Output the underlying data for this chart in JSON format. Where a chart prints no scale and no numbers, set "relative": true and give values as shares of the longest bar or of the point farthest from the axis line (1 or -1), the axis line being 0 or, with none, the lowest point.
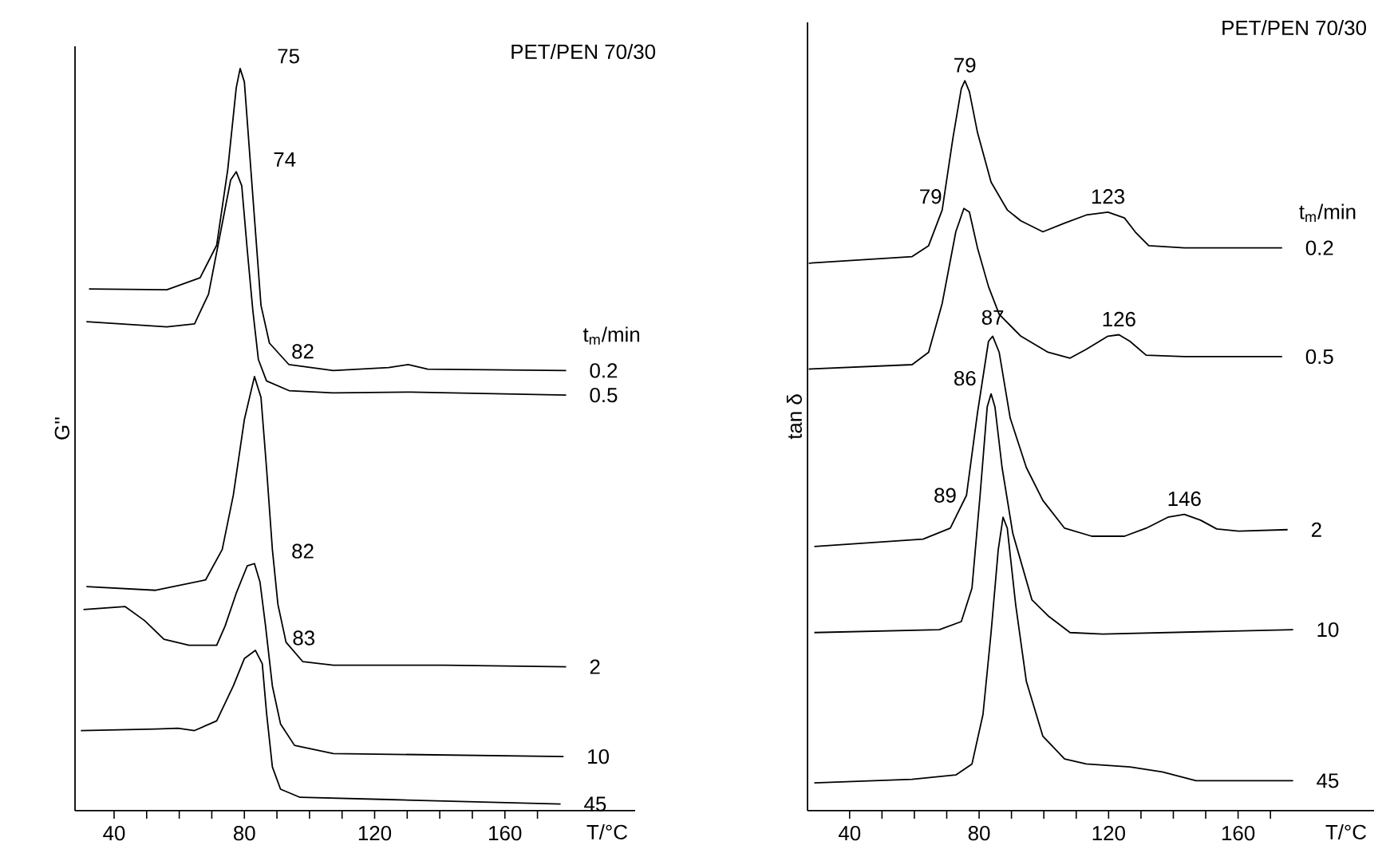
{
  "chart_data": [
    {
      "type": "line",
      "title": "PET/PEN 70/30",
      "xlabel": "T/°C",
      "ylabel": "G''",
      "legend_title": "t$_{m}$/min",
      "relative": true,
      "xlim": [
        28,
        200
      ],
      "xticks": [
        40,
        {
          "value": 50,
          "label": null
        },
        {
          "value": 60,
          "label": null
        },
        {
          "value": 70,
          "label": null
        },
        80,
        {
          "value": 90,
          "label": null
        },
        {
          "value": 100,
          "label": null
        },
        {
          "value": 110,
          "label": null
        },
        120,
        {
          "value": 130,
          "label": null
        },
        {
          "value": 140,
          "label": null
        },
        {
          "value": 150,
          "label": null
        },
        160,
        {
          "value": 170,
          "label": null
        }
      ],
      "series": [
        {
          "name": "0.2",
          "color": "#000000",
          "x": [
            32.3,
            56.2,
            66.4,
            71.5,
            74.9,
            77.5,
            78.7,
            80.0,
            82.6,
            85.1,
            87.7,
            93.7,
            107.3,
            124.3,
            130.3,
            136.3,
            178.8
          ],
          "values": [
            0.703,
            0.702,
            0.718,
            0.762,
            0.864,
            0.974,
            1.0,
            0.982,
            0.828,
            0.681,
            0.63,
            0.601,
            0.593,
            0.597,
            0.601,
            0.595,
            0.593
          ]
        },
        {
          "name": "0.5",
          "color": "#000000",
          "x": [
            31.5,
            56.2,
            64.7,
            69.0,
            73.2,
            75.8,
            77.5,
            79.2,
            80.9,
            82.6,
            84.3,
            86.8,
            93.7,
            107.3,
            131.1,
            178.8
          ],
          "values": [
            0.659,
            0.652,
            0.656,
            0.696,
            0.791,
            0.85,
            0.861,
            0.842,
            0.755,
            0.674,
            0.608,
            0.579,
            0.566,
            0.563,
            0.564,
            0.56
          ]
        },
        {
          "name": "2",
          "color": "#000000",
          "x": [
            31.5,
            52.8,
            68.1,
            73.2,
            76.6,
            80.0,
            83.1,
            85.1,
            86.8,
            88.6,
            90.3,
            92.8,
            97.9,
            107.3,
            141.4,
            178.8
          ],
          "values": [
            0.302,
            0.297,
            0.311,
            0.352,
            0.425,
            0.527,
            0.585,
            0.557,
            0.462,
            0.352,
            0.278,
            0.227,
            0.201,
            0.196,
            0.196,
            0.194
          ]
        },
        {
          "name": "10",
          "color": "#000000",
          "x": [
            30.6,
            43.4,
            49.4,
            55.3,
            63.0,
            71.5,
            74.1,
            77.5,
            80.9,
            83.1,
            84.8,
            86.5,
            88.6,
            91.1,
            95.4,
            107.3,
            178.0
          ],
          "values": [
            0.271,
            0.275,
            0.256,
            0.231,
            0.223,
            0.223,
            0.249,
            0.293,
            0.33,
            0.333,
            0.308,
            0.249,
            0.168,
            0.117,
            0.088,
            0.077,
            0.073
          ]
        },
        {
          "name": "45",
          "color": "#000000",
          "x": [
            29.8,
            52.8,
            59.6,
            64.7,
            71.5,
            76.6,
            80.0,
            83.4,
            85.5,
            86.8,
            88.6,
            91.1,
            97.1,
            124.3,
            177.1
          ],
          "values": [
            0.108,
            0.11,
            0.111,
            0.108,
            0.121,
            0.168,
            0.205,
            0.216,
            0.198,
            0.132,
            0.059,
            0.029,
            0.018,
            0.015,
            0.009
          ]
        }
      ],
      "annotations": [
        {
          "text": "75",
          "x": 78.7,
          "y": 1.0
        },
        {
          "text": "74",
          "x": 77.5,
          "y": 0.861
        },
        {
          "text": "82",
          "x": 83.1,
          "y": 0.585
        },
        {
          "text": "82",
          "x": 83.1,
          "y": 0.333
        },
        {
          "text": "83",
          "x": 83.4,
          "y": 0.216
        }
      ]
    },
    {
      "type": "line",
      "title": "PET/PEN 70/30",
      "xlabel": "T/°C",
      "ylabel": "tan δ",
      "legend_title": "t$_{m}$/min",
      "relative": true,
      "xlim": [
        27,
        202
      ],
      "xticks": [
        40,
        {
          "value": 50,
          "label": null
        },
        {
          "value": 60,
          "label": null
        },
        {
          "value": 70,
          "label": null
        },
        80,
        {
          "value": 90,
          "label": null
        },
        {
          "value": 100,
          "label": null
        },
        {
          "value": 110,
          "label": null
        },
        120,
        {
          "value": 130,
          "label": null
        },
        {
          "value": 140,
          "label": null
        },
        {
          "value": 150,
          "label": null
        },
        160,
        {
          "value": 170,
          "label": null
        }
      ],
      "series": [
        {
          "name": "0.2",
          "color": "#000000",
          "x": [
            27.4,
            59.3,
            64.4,
            68.6,
            71.9,
            74.5,
            75.6,
            77.0,
            79.5,
            83.7,
            88.7,
            92.9,
            99.7,
            106.4,
            113.1,
            119.8,
            124.9,
            128.2,
            132.4,
            143.4,
            173.6
          ],
          "values": [
            0.75,
            0.759,
            0.774,
            0.823,
            0.921,
            0.989,
            1.0,
            0.985,
            0.929,
            0.861,
            0.823,
            0.808,
            0.793,
            0.805,
            0.816,
            0.82,
            0.812,
            0.793,
            0.774,
            0.771,
            0.771
          ]
        },
        {
          "name": "0.5",
          "color": "#000000",
          "x": [
            27.4,
            59.3,
            64.4,
            68.6,
            72.8,
            75.3,
            77.0,
            79.5,
            82.9,
            86.2,
            92.9,
            101.3,
            108.1,
            113.1,
            119.8,
            123.2,
            126.6,
            131.6,
            143.4,
            173.6
          ],
          "values": [
            0.605,
            0.611,
            0.628,
            0.695,
            0.793,
            0.825,
            0.82,
            0.771,
            0.718,
            0.68,
            0.65,
            0.628,
            0.62,
            0.632,
            0.65,
            0.652,
            0.643,
            0.624,
            0.622,
            0.622
          ]
        },
        {
          "name": "2",
          "color": "#000000",
          "x": [
            29.1,
            62.7,
            71.1,
            76.1,
            79.5,
            82.9,
            84.2,
            86.2,
            89.6,
            94.6,
            99.7,
            106.4,
            114.8,
            124.9,
            131.6,
            138.3,
            143.4,
            148.4,
            153.4,
            160.2,
            175.3
          ],
          "values": [
            0.362,
            0.372,
            0.387,
            0.432,
            0.545,
            0.643,
            0.65,
            0.628,
            0.538,
            0.47,
            0.425,
            0.387,
            0.376,
            0.376,
            0.387,
            0.402,
            0.406,
            0.398,
            0.386,
            0.383,
            0.385
          ]
        },
        {
          "name": "10",
          "color": "#000000",
          "x": [
            29.1,
            67.7,
            74.5,
            77.8,
            80.3,
            82.5,
            83.7,
            84.9,
            87.1,
            90.4,
            96.3,
            101.3,
            108.1,
            118.2,
            177.0
          ],
          "values": [
            0.244,
            0.248,
            0.259,
            0.305,
            0.432,
            0.553,
            0.571,
            0.553,
            0.47,
            0.38,
            0.289,
            0.267,
            0.244,
            0.242,
            0.248
          ]
        },
        {
          "name": "45",
          "color": "#000000",
          "x": [
            29.1,
            59.3,
            72.8,
            77.8,
            81.2,
            83.7,
            85.9,
            87.4,
            88.7,
            91.3,
            94.6,
            99.7,
            106.4,
            113.1,
            126.6,
            136.6,
            147.0,
            177.0
          ],
          "values": [
            0.038,
            0.043,
            0.049,
            0.064,
            0.132,
            0.244,
            0.357,
            0.402,
            0.387,
            0.282,
            0.177,
            0.102,
            0.071,
            0.064,
            0.06,
            0.053,
            0.041,
            0.041
          ]
        }
      ],
      "annotations": [
        {
          "text": "79",
          "x": 75.6,
          "y": 1.0
        },
        {
          "text": "79",
          "x": 77.0,
          "y": 0.82
        },
        {
          "text": "123",
          "x": 119.8,
          "y": 0.82
        },
        {
          "text": "87",
          "x": 84.2,
          "y": 0.65
        },
        {
          "text": "126",
          "x": 123.2,
          "y": 0.652
        },
        {
          "text": "86",
          "x": 83.7,
          "y": 0.571
        },
        {
          "text": "146",
          "x": 143.4,
          "y": 0.406
        },
        {
          "text": "89",
          "x": 87.4,
          "y": 0.402
        }
      ]
    }
  ]
}
